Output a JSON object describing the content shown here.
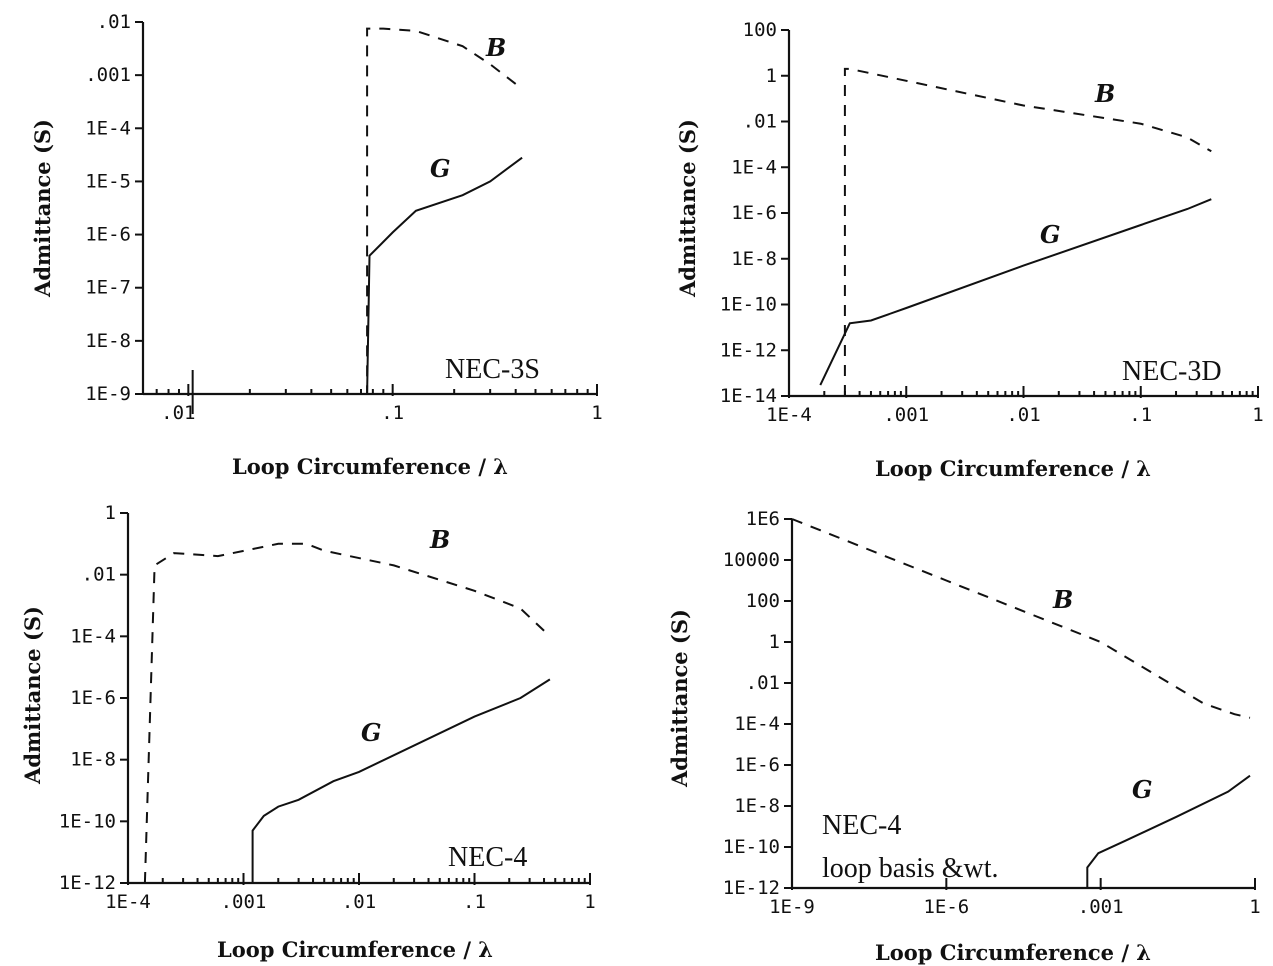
{
  "chart_data": [
    {
      "type": "line",
      "xscale": "log",
      "yscale": "log",
      "xlim": [
        0.006,
        1
      ],
      "ylim": [
        1e-09,
        0.01
      ],
      "xticks": [
        0.01,
        0.1,
        1
      ],
      "xticklabels": [
        ".01",
        ".1",
        "1"
      ],
      "yticks": [
        0.01,
        0.001,
        0.0001,
        1e-05,
        1e-06,
        1e-07,
        1e-08,
        1e-09
      ],
      "yticklabels": [
        ".01",
        ".001",
        "1E-4",
        "1E-5",
        "1E-6",
        "1E-7",
        "1E-8",
        "1E-9"
      ],
      "xlabel": "Loop Circumference / λ",
      "ylabel": "Admittance (S)",
      "annotation": "NEC-3S",
      "extra_vlines": [
        0.0105
      ],
      "series": [
        {
          "name": "B",
          "style": "dashed",
          "x": [
            0.073,
            0.075,
            0.075,
            0.09,
            0.13,
            0.22,
            0.3,
            0.43
          ],
          "y": [
            1e-09,
            1e-09,
            0.0075,
            0.0075,
            0.0068,
            0.0035,
            0.0016,
            0.00055
          ]
        },
        {
          "name": "G",
          "style": "solid",
          "x": [
            0.073,
            0.075,
            0.077,
            0.1,
            0.13,
            0.22,
            0.3,
            0.43
          ],
          "y": [
            1e-09,
            1e-09,
            4e-07,
            1.1e-06,
            2.8e-06,
            5.5e-06,
            1e-05,
            2.8e-05
          ]
        }
      ]
    },
    {
      "type": "line",
      "xscale": "log",
      "yscale": "log",
      "xlim": [
        0.0001,
        1
      ],
      "ylim": [
        1e-14,
        100
      ],
      "xticks": [
        0.0001,
        0.001,
        0.01,
        0.1,
        1
      ],
      "xticklabels": [
        "1E-4",
        ".001",
        ".01",
        ".1",
        "1"
      ],
      "yticks": [
        100,
        1,
        0.01,
        0.0001,
        1e-06,
        1e-08,
        1e-10,
        1e-12,
        1e-14
      ],
      "yticklabels": [
        "100",
        "1",
        ".01",
        "1E-4",
        "1E-6",
        "1E-8",
        "1E-10",
        "1E-12",
        "1E-14"
      ],
      "xlabel": "Loop Circumference / λ",
      "ylabel": "Admittance (S)",
      "annotation": "NEC-3D",
      "series": [
        {
          "name": "B",
          "style": "dashed",
          "x": [
            0.0003,
            0.0003,
            0.00033,
            0.001,
            0.01,
            0.1,
            0.25,
            0.4
          ],
          "y": [
            1e-14,
            2,
            2,
            0.6,
            0.05,
            0.008,
            0.002,
            0.0005
          ]
        },
        {
          "name": "G",
          "style": "solid",
          "x": [
            0.000185,
            0.00033,
            0.0005,
            0.001,
            0.01,
            0.1,
            0.25,
            0.4
          ],
          "y": [
            3e-14,
            1.5e-11,
            2e-11,
            7e-11,
            5e-09,
            3e-07,
            1.5e-06,
            4e-06
          ]
        }
      ]
    },
    {
      "type": "line",
      "xscale": "log",
      "yscale": "log",
      "xlim": [
        0.0001,
        1
      ],
      "ylim": [
        1e-12,
        1
      ],
      "xticks": [
        0.0001,
        0.001,
        0.01,
        0.1,
        1
      ],
      "xticklabels": [
        "1E-4",
        ".001",
        ".01",
        ".1",
        "1"
      ],
      "yticks": [
        1,
        0.01,
        0.0001,
        1e-06,
        1e-08,
        1e-10,
        1e-12
      ],
      "yticklabels": [
        "1",
        ".01",
        "1E-4",
        "1E-6",
        "1E-8",
        "1E-10",
        "1E-12"
      ],
      "xlabel": "Loop Circumference / λ",
      "ylabel": "Admittance (S)",
      "annotation": "NEC-4",
      "series": [
        {
          "name": "B",
          "style": "dashed",
          "x": [
            0.00014,
            0.00017,
            0.00025,
            0.0006,
            0.002,
            0.0035,
            0.005,
            0.02,
            0.1,
            0.25,
            0.45
          ],
          "y": [
            1e-12,
            0.02,
            0.05,
            0.04,
            0.1,
            0.1,
            0.06,
            0.02,
            0.003,
            0.0008,
            0.0001
          ]
        },
        {
          "name": "G",
          "style": "solid",
          "x": [
            0.0012,
            0.0012,
            0.0015,
            0.002,
            0.003,
            0.006,
            0.01,
            0.1,
            0.25,
            0.45
          ],
          "y": [
            1e-12,
            5e-11,
            1.5e-10,
            3e-10,
            5e-10,
            2e-09,
            4e-09,
            2.5e-07,
            1e-06,
            4e-06
          ]
        }
      ]
    },
    {
      "type": "line",
      "xscale": "log",
      "yscale": "log",
      "xlim": [
        1e-09,
        1
      ],
      "ylim": [
        1e-12,
        1000000
      ],
      "xticks": [
        1e-09,
        1e-06,
        0.001,
        1
      ],
      "xticklabels": [
        "1E-9",
        "1E-6",
        ".001",
        "1"
      ],
      "yticks": [
        1000000,
        10000,
        100,
        1,
        0.01,
        0.0001,
        1e-06,
        1e-08,
        1e-10,
        1e-12
      ],
      "yticklabels": [
        "1E6",
        "10000",
        "100",
        "1",
        ".01",
        "1E-4",
        "1E-6",
        "1E-8",
        "1E-10",
        "1E-12"
      ],
      "xlabel": "Loop Circumference / λ",
      "ylabel": "Admittance (S)",
      "annotation": "NEC-4",
      "annotation2": "loop basis &wt.",
      "series": [
        {
          "name": "B",
          "style": "dashed",
          "x": [
            1e-09,
            1e-06,
            0.001,
            0.1,
            0.4,
            0.8
          ],
          "y": [
            1000000,
            1000,
            1,
            0.001,
            0.0003,
            0.0002
          ]
        },
        {
          "name": "G",
          "style": "solid",
          "x": [
            0.00055,
            0.00055,
            0.0009,
            0.003,
            0.03,
            0.3,
            0.8
          ],
          "y": [
            1e-12,
            1e-11,
            5e-11,
            2e-10,
            3e-09,
            5e-08,
            3e-07
          ]
        }
      ]
    }
  ]
}
